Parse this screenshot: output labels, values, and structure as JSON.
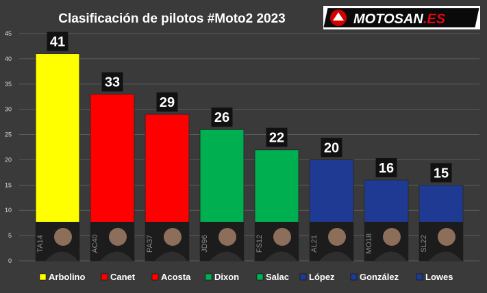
{
  "brand": {
    "logo_text": "MOTOSAN",
    "logo_suffix": ".ES"
  },
  "colors": {
    "background": "#3a3a3a",
    "grid": "#5c5c5c",
    "yellow": "#ffff00",
    "red": "#ff0000",
    "green": "#00b050",
    "navy": "#1f3a93"
  },
  "chart_data": {
    "type": "bar",
    "title": "Clasificación de pilotos #Moto2 2023",
    "xlabel": "",
    "ylabel": "",
    "ylim": [
      0,
      45
    ],
    "yticks": [
      0,
      5,
      10,
      15,
      20,
      25,
      30,
      35,
      40,
      45
    ],
    "grid": true,
    "legend_position": "bottom",
    "categories": [
      "Arbolino",
      "Canet",
      "Acosta",
      "Dixon",
      "Salac",
      "López",
      "González",
      "Lowes"
    ],
    "values": [
      41,
      33,
      29,
      26,
      22,
      20,
      16,
      15
    ],
    "bar_colors": [
      "#ffff00",
      "#ff0000",
      "#ff0000",
      "#00b050",
      "#00b050",
      "#1f3a93",
      "#1f3a93",
      "#1f3a93"
    ],
    "rider_codes": [
      "TA14",
      "AC40",
      "PA37",
      "JD96",
      "FS12",
      "AL21",
      "MO18",
      "SL22"
    ]
  }
}
